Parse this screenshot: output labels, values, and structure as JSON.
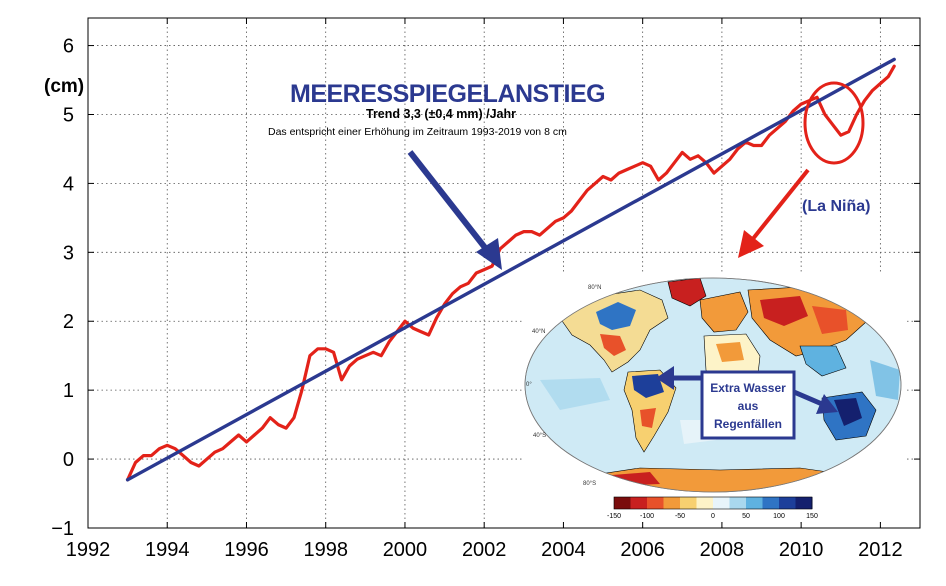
{
  "chart_data": {
    "type": "line",
    "title": "MEERESSPIEGELANSTIEG",
    "subtitle": "Trend 3,3 (±0,4 mm) /Jahr",
    "note": "Das entspricht einer  Erhöhung im Zeitraum 1993-2019 von 8 cm",
    "ylabel": "(cm)",
    "xlim": [
      1992,
      2013
    ],
    "ylim": [
      -1,
      6.4
    ],
    "x_ticks": [
      "1992",
      "1994",
      "1996",
      "1998",
      "2000",
      "2002",
      "2004",
      "2006",
      "2008",
      "2010",
      "2012"
    ],
    "y_ticks": [
      "−1",
      "0",
      "1",
      "2",
      "3",
      "4",
      "5",
      "6"
    ],
    "grid": true,
    "annotation": "(La Niña)",
    "series": [
      {
        "color": "#e32219",
        "x": [
          1993.0,
          1993.2,
          1993.4,
          1993.6,
          1993.8,
          1994.0,
          1994.2,
          1994.4,
          1994.6,
          1994.8,
          1995.0,
          1995.2,
          1995.4,
          1995.6,
          1995.8,
          1996.0,
          1996.2,
          1996.4,
          1996.6,
          1996.8,
          1997.0,
          1997.2,
          1997.4,
          1997.6,
          1997.8,
          1998.0,
          1998.2,
          1998.4,
          1998.6,
          1998.8,
          1999.0,
          1999.2,
          1999.4,
          1999.6,
          1999.8,
          2000.0,
          2000.2,
          2000.4,
          2000.6,
          2000.8,
          2001.0,
          2001.2,
          2001.4,
          2001.6,
          2001.8,
          2002.0,
          2002.2,
          2002.4,
          2002.6,
          2002.8,
          2003.0,
          2003.2,
          2003.4,
          2003.6,
          2003.8,
          2004.0,
          2004.2,
          2004.4,
          2004.6,
          2004.8,
          2005.0,
          2005.2,
          2005.4,
          2005.6,
          2005.8,
          2006.0,
          2006.2,
          2006.4,
          2006.6,
          2006.8,
          2007.0,
          2007.2,
          2007.4,
          2007.6,
          2007.8,
          2008.0,
          2008.2,
          2008.4,
          2008.6,
          2008.8,
          2009.0,
          2009.2,
          2009.4,
          2009.6,
          2009.8,
          2010.0,
          2010.2,
          2010.4,
          2010.6,
          2010.8,
          2011.0,
          2011.2,
          2011.4,
          2011.6,
          2011.8,
          2012.0,
          2012.2,
          2012.35
        ],
        "values": [
          -0.3,
          -0.05,
          0.05,
          0.05,
          0.15,
          0.2,
          0.15,
          0.05,
          -0.05,
          -0.1,
          0.0,
          0.1,
          0.15,
          0.25,
          0.35,
          0.25,
          0.35,
          0.45,
          0.6,
          0.5,
          0.45,
          0.6,
          1.0,
          1.5,
          1.6,
          1.6,
          1.55,
          1.15,
          1.35,
          1.45,
          1.5,
          1.55,
          1.5,
          1.7,
          1.85,
          2.0,
          1.9,
          1.85,
          1.8,
          2.05,
          2.25,
          2.4,
          2.5,
          2.55,
          2.7,
          2.75,
          2.8,
          3.05,
          3.15,
          3.25,
          3.3,
          3.3,
          3.25,
          3.35,
          3.45,
          3.5,
          3.6,
          3.75,
          3.9,
          4.0,
          4.1,
          4.05,
          4.15,
          4.2,
          4.25,
          4.3,
          4.25,
          4.05,
          4.15,
          4.3,
          4.45,
          4.35,
          4.4,
          4.3,
          4.15,
          4.25,
          4.35,
          4.5,
          4.6,
          4.55,
          4.55,
          4.7,
          4.8,
          4.9,
          5.05,
          5.15,
          5.2,
          5.25,
          5.0,
          4.85,
          4.7,
          4.75,
          5.0,
          5.2,
          5.35,
          5.45,
          5.55,
          5.7
        ]
      },
      {
        "color": "#2b3990",
        "x": [
          1993.0,
          2012.35
        ],
        "values": [
          -0.3,
          5.8
        ]
      }
    ]
  },
  "inset": {
    "box_text": [
      "Extra Wasser",
      "aus",
      "Regenfällen"
    ],
    "colorbar_ticks": [
      "-150",
      "-100",
      "-50",
      "0",
      "50",
      "100",
      "150"
    ],
    "colorbar_colors": [
      "#7a0d0d",
      "#c8201f",
      "#e8512a",
      "#f29a3a",
      "#f7d070",
      "#fdf3c8",
      "#e8f4fa",
      "#a9d8ee",
      "#5fb2e0",
      "#2f74c4",
      "#1d3f9a",
      "#14206e"
    ],
    "lat_labels": [
      "80°S",
      "40°S",
      "0°",
      "40°N",
      "80°N"
    ]
  }
}
